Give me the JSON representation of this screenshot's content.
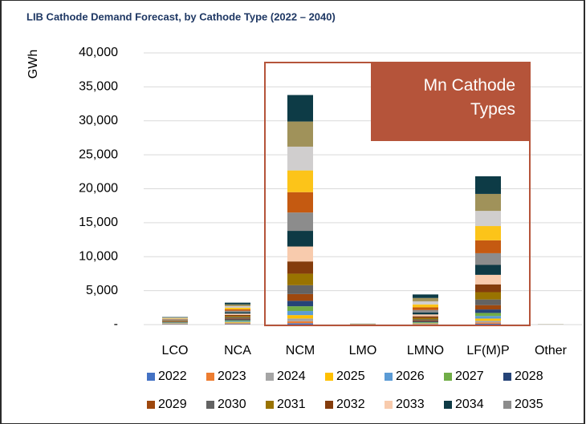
{
  "chart_data": {
    "type": "stacked_bar",
    "title": "LIB Cathode Demand Forecast, by Cathode Type (2022 – 2040)",
    "y_label": "GWh",
    "annotation": "Mn Cathode Types",
    "categories": [
      "LCO",
      "NCA",
      "NCM",
      "LMO",
      "LMNO",
      "LF(M)P",
      "Other"
    ],
    "ylim": [
      0,
      40000
    ],
    "yticks": [
      {
        "value": 0,
        "label": "-"
      },
      {
        "value": 5000,
        "label": "5,000"
      },
      {
        "value": 10000,
        "label": "10,000"
      },
      {
        "value": 15000,
        "label": "15,000"
      },
      {
        "value": 20000,
        "label": "20,000"
      },
      {
        "value": 25000,
        "label": "25,000"
      },
      {
        "value": 30000,
        "label": "30,000"
      },
      {
        "value": 35000,
        "label": "35,000"
      },
      {
        "value": 40000,
        "label": "40,000"
      }
    ],
    "grid": true,
    "series": [
      {
        "name": "2022",
        "color": "#4472c4",
        "values": [
          50,
          80,
          200,
          5,
          30,
          130,
          2
        ]
      },
      {
        "name": "2023",
        "color": "#ed7d31",
        "values": [
          50,
          90,
          300,
          5,
          40,
          190,
          2
        ]
      },
      {
        "name": "2024",
        "color": "#a5a5a5",
        "values": [
          52,
          100,
          400,
          5,
          50,
          250,
          2
        ]
      },
      {
        "name": "2025",
        "color": "#ffc000",
        "values": [
          52,
          110,
          500,
          6,
          70,
          320,
          2
        ]
      },
      {
        "name": "2026",
        "color": "#5b9bd5",
        "values": [
          54,
          120,
          600,
          6,
          80,
          380,
          2
        ]
      },
      {
        "name": "2027",
        "color": "#70ad47",
        "values": [
          54,
          130,
          700,
          6,
          90,
          450,
          2
        ]
      },
      {
        "name": "2028",
        "color": "#264478",
        "values": [
          56,
          140,
          800,
          7,
          110,
          510,
          3
        ]
      },
      {
        "name": "2029",
        "color": "#9e480e",
        "values": [
          56,
          150,
          1000,
          7,
          130,
          640,
          3
        ]
      },
      {
        "name": "2030",
        "color": "#636363",
        "values": [
          58,
          160,
          1300,
          7,
          170,
          830,
          3
        ]
      },
      {
        "name": "2031",
        "color": "#997300",
        "values": [
          58,
          170,
          1700,
          8,
          220,
          1080,
          3
        ]
      },
      {
        "name": "2032",
        "color": "#843c0c",
        "values": [
          60,
          180,
          1800,
          8,
          230,
          1150,
          3
        ]
      },
      {
        "name": "2033",
        "color": "#f8cbad",
        "values": [
          60,
          190,
          2200,
          8,
          280,
          1400,
          3
        ]
      },
      {
        "name": "2034",
        "color": "#0e3a45",
        "values": [
          62,
          200,
          2300,
          9,
          300,
          1460,
          3
        ]
      },
      {
        "name": "2035",
        "color": "#8c8c8c",
        "values": [
          62,
          210,
          2700,
          9,
          350,
          1720,
          3
        ]
      },
      {
        "color": "#c55a11",
        "values": [
          64,
          220,
          3000,
          9,
          390,
          1900,
          3
        ]
      },
      {
        "color": "#fcc419",
        "values": [
          64,
          230,
          3200,
          10,
          430,
          2100,
          3
        ]
      },
      {
        "color": "#d0cece",
        "values": [
          66,
          240,
          3500,
          10,
          460,
          2230,
          3
        ]
      },
      {
        "color": "#a0925a",
        "values": [
          66,
          250,
          3700,
          10,
          490,
          2500,
          3
        ]
      },
      {
        "color": "#0d3b46",
        "values": [
          68,
          260,
          3900,
          11,
          520,
          2600,
          3
        ]
      }
    ]
  }
}
